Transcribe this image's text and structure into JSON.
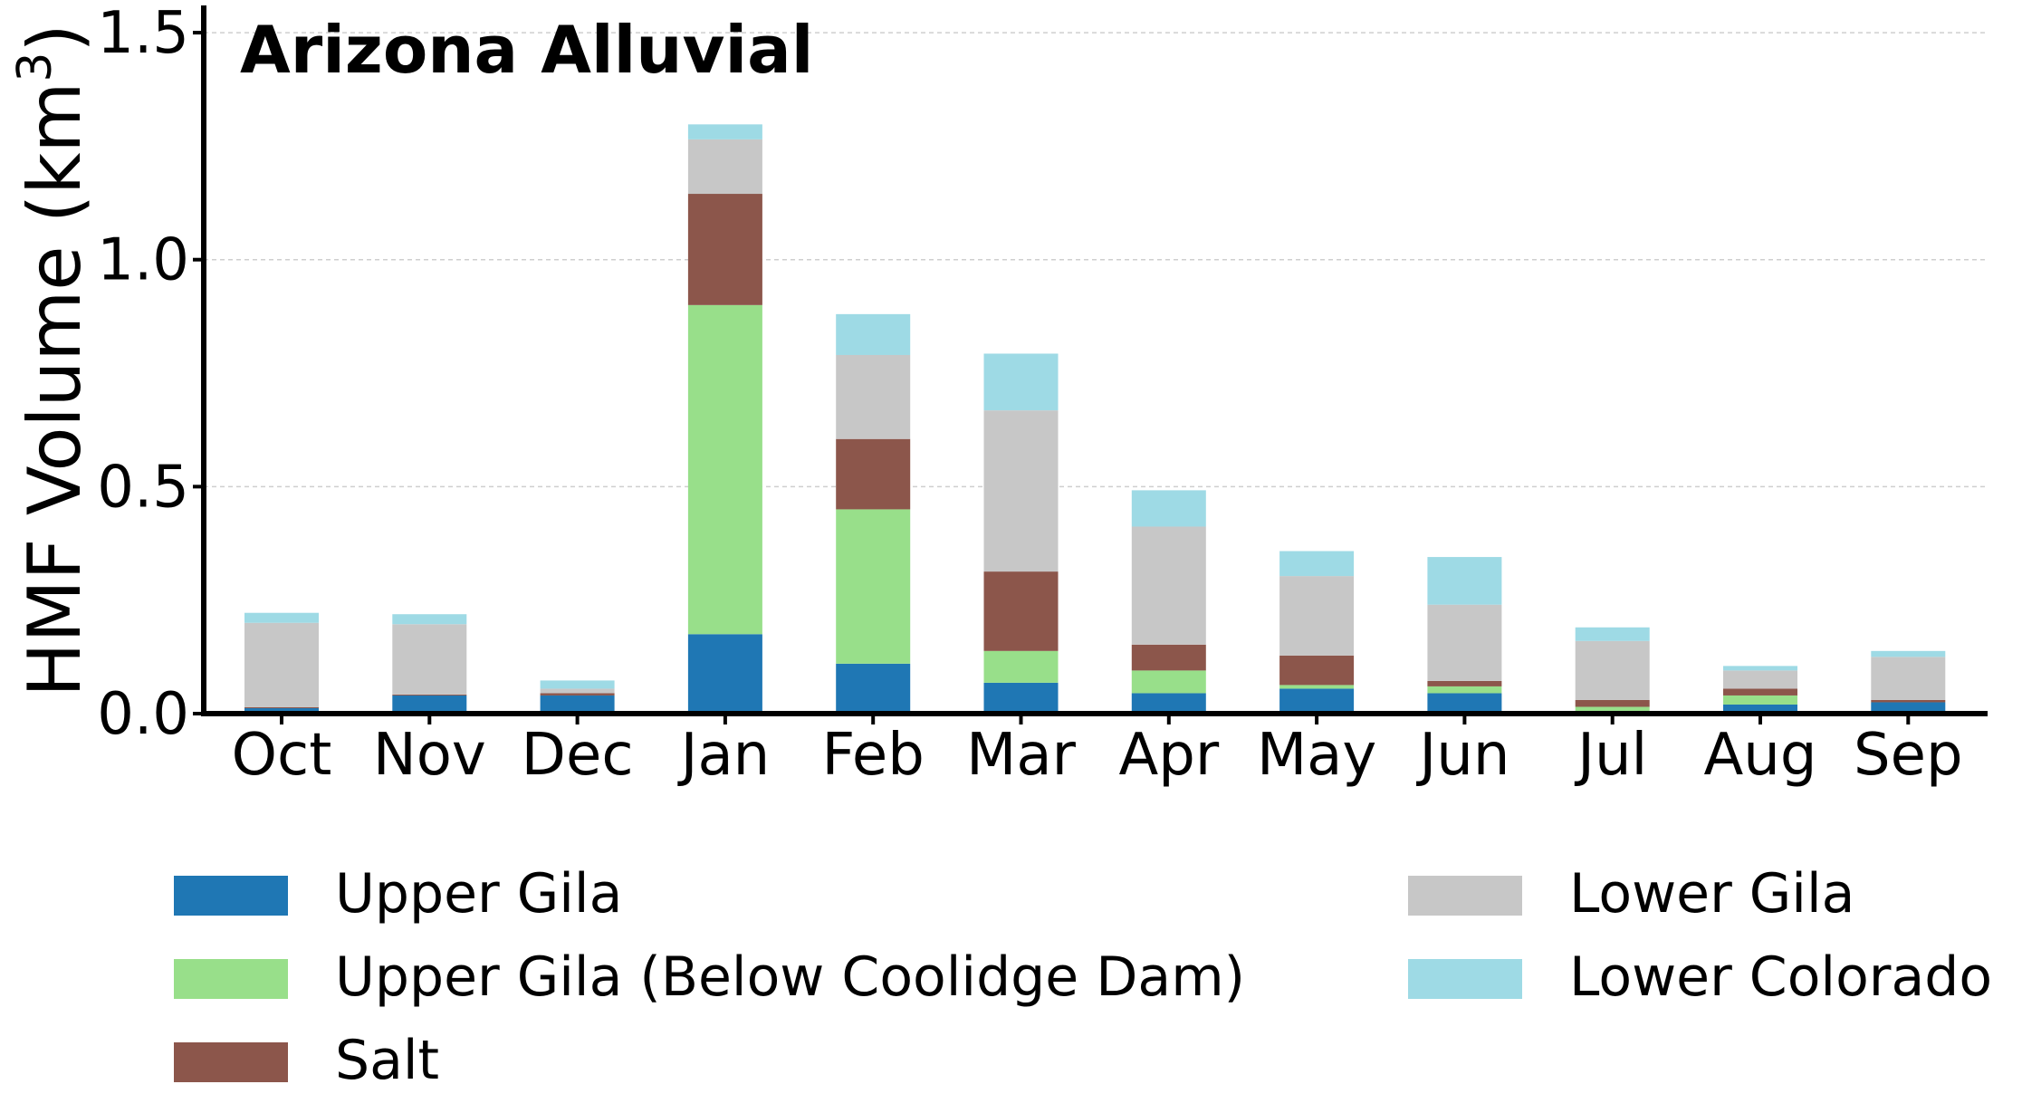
{
  "chart_data": {
    "type": "bar",
    "stacked": true,
    "title": "Arizona Alluvial",
    "ylabel": "HMF Volume (km",
    "ylabel_sup": "3",
    "ylabel_close": ")",
    "xlabel": "",
    "ylim": [
      0,
      1.56
    ],
    "yticks": [
      "0.0",
      "0.5",
      "1.0",
      "1.5"
    ],
    "ytick_values": [
      0,
      0.5,
      1.0,
      1.5
    ],
    "grid": "horizontal dashed",
    "legend_position": "bottom",
    "categories": [
      "Oct",
      "Nov",
      "Dec",
      "Jan",
      "Feb",
      "Mar",
      "Apr",
      "May",
      "Jun",
      "Jul",
      "Aug",
      "Sep"
    ],
    "series": [
      {
        "name": "Upper Gila",
        "color": "#1f77b4",
        "values": [
          0.012,
          0.04,
          0.04,
          0.175,
          0.11,
          0.068,
          0.045,
          0.055,
          0.045,
          0.005,
          0.02,
          0.025
        ]
      },
      {
        "name": "Upper Gila (Below Coolidge Dam)",
        "color": "#98df8a",
        "values": [
          0.0,
          0.0,
          0.0,
          0.725,
          0.34,
          0.07,
          0.05,
          0.008,
          0.015,
          0.01,
          0.02,
          0.0
        ]
      },
      {
        "name": "Salt",
        "color": "#8c564b",
        "values": [
          0.002,
          0.002,
          0.005,
          0.245,
          0.155,
          0.175,
          0.057,
          0.065,
          0.012,
          0.015,
          0.015,
          0.005
        ]
      },
      {
        "name": "Lower Gila",
        "color": "#c7c7c7",
        "values": [
          0.186,
          0.155,
          0.01,
          0.12,
          0.185,
          0.355,
          0.26,
          0.175,
          0.168,
          0.13,
          0.04,
          0.095
        ]
      },
      {
        "name": "Lower Colorado",
        "color": "#9edae5",
        "values": [
          0.022,
          0.022,
          0.018,
          0.033,
          0.09,
          0.125,
          0.08,
          0.055,
          0.105,
          0.03,
          0.01,
          0.013
        ]
      }
    ]
  }
}
